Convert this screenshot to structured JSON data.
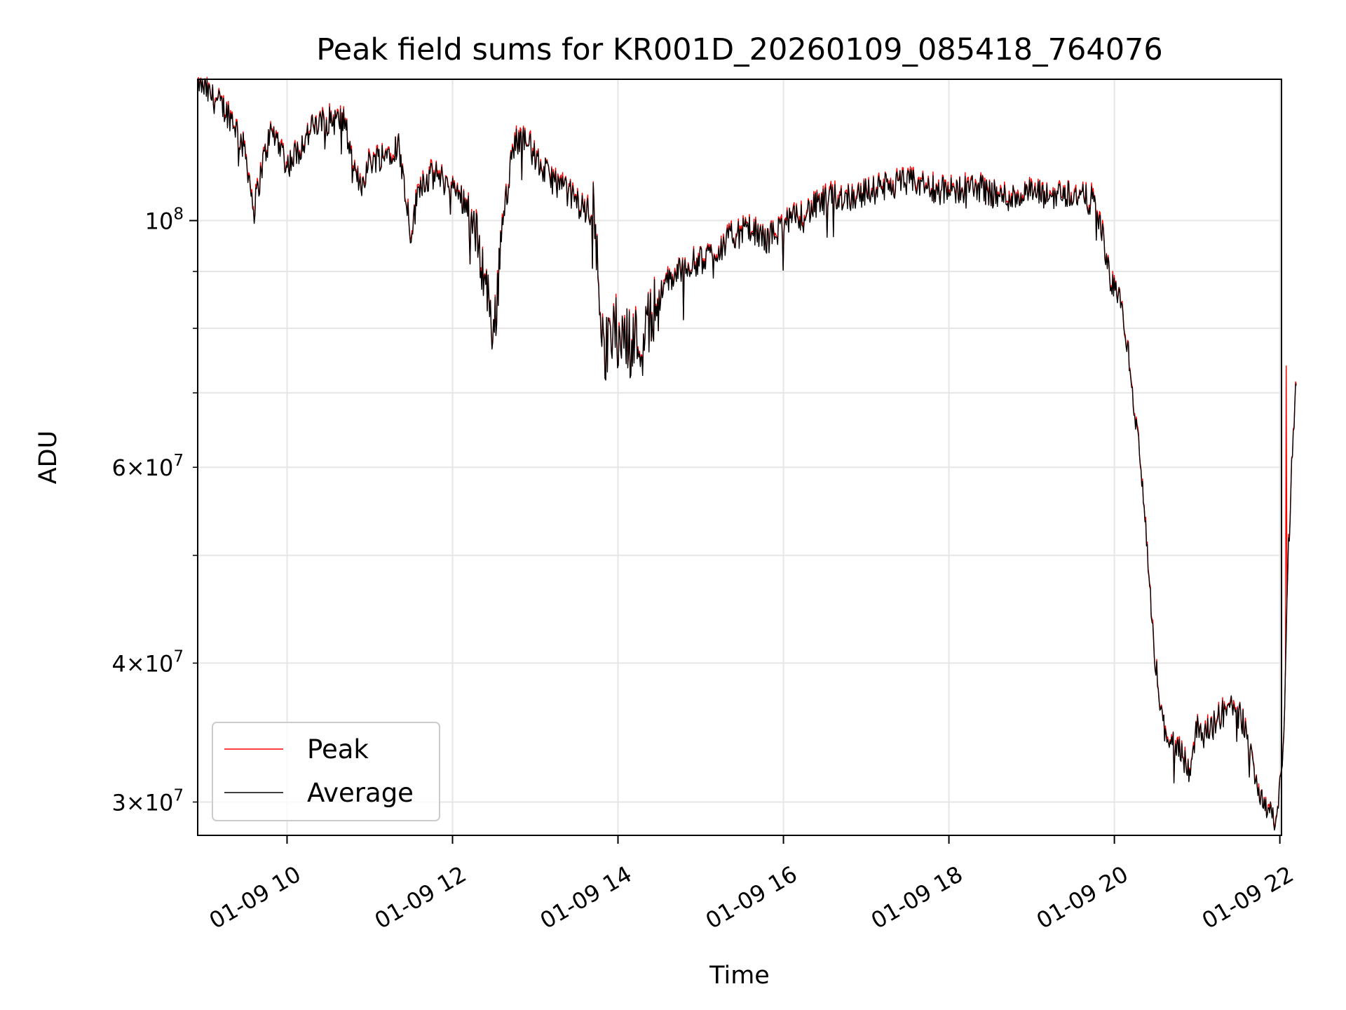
{
  "chart_data": {
    "type": "line",
    "title": "Peak field sums for KR001D_20260109_085418_764076",
    "xlabel": "Time",
    "ylabel": "ADU",
    "yscale": "log",
    "ylim": [
      28000000,
      134000000
    ],
    "xlim_hours": [
      8.92,
      22.02
    ],
    "grid": true,
    "legend_position": "lower-left",
    "colors": {
      "peak": "#ff0000",
      "average": "#000000",
      "grid": "#e6e6e6",
      "axes": "#000000"
    },
    "x_ticks": [
      {
        "hour": 10,
        "label": "01-09 10"
      },
      {
        "hour": 12,
        "label": "01-09 12"
      },
      {
        "hour": 14,
        "label": "01-09 14"
      },
      {
        "hour": 16,
        "label": "01-09 16"
      },
      {
        "hour": 18,
        "label": "01-09 18"
      },
      {
        "hour": 20,
        "label": "01-09 20"
      },
      {
        "hour": 22,
        "label": "01-09 22"
      }
    ],
    "y_major_ticks": [
      {
        "value": 100000000,
        "base": "10",
        "exp": "8"
      }
    ],
    "y_minor_ticks": [
      {
        "value": 30000000,
        "mant": "3",
        "exp": "7"
      },
      {
        "value": 40000000,
        "mant": "4",
        "exp": "7"
      },
      {
        "value": 50000000,
        "mant": "",
        "exp": ""
      },
      {
        "value": 60000000,
        "mant": "6",
        "exp": "7"
      },
      {
        "value": 70000000,
        "mant": "",
        "exp": ""
      },
      {
        "value": 80000000,
        "mant": "",
        "exp": ""
      },
      {
        "value": 90000000,
        "mant": "",
        "exp": ""
      }
    ],
    "series_points": [
      [
        8.92,
        134000000
      ],
      [
        9.05,
        130000000
      ],
      [
        9.2,
        127000000
      ],
      [
        9.35,
        123000000
      ],
      [
        9.5,
        115000000
      ],
      [
        9.6,
        102000000
      ],
      [
        9.7,
        112000000
      ],
      [
        9.8,
        120000000
      ],
      [
        9.9,
        118000000
      ],
      [
        10.0,
        112000000
      ],
      [
        10.15,
        116000000
      ],
      [
        10.3,
        121000000
      ],
      [
        10.5,
        123000000
      ],
      [
        10.7,
        123000000
      ],
      [
        10.8,
        110000000
      ],
      [
        10.9,
        108000000
      ],
      [
        11.0,
        113000000
      ],
      [
        11.2,
        115000000
      ],
      [
        11.35,
        117000000
      ],
      [
        11.5,
        97000000
      ],
      [
        11.6,
        108000000
      ],
      [
        11.8,
        110000000
      ],
      [
        12.0,
        107000000
      ],
      [
        12.2,
        103000000
      ],
      [
        12.35,
        92000000
      ],
      [
        12.45,
        84000000
      ],
      [
        12.5,
        78000000
      ],
      [
        12.6,
        100000000
      ],
      [
        12.75,
        118000000
      ],
      [
        12.9,
        118000000
      ],
      [
        13.05,
        112000000
      ],
      [
        13.2,
        109000000
      ],
      [
        13.4,
        106000000
      ],
      [
        13.55,
        103000000
      ],
      [
        13.7,
        101000000
      ],
      [
        13.85,
        76000000
      ],
      [
        13.95,
        80000000
      ],
      [
        14.1,
        78000000
      ],
      [
        14.3,
        78000000
      ],
      [
        14.45,
        84000000
      ],
      [
        14.6,
        88000000
      ],
      [
        14.8,
        91000000
      ],
      [
        15.0,
        92000000
      ],
      [
        15.2,
        94000000
      ],
      [
        15.4,
        97000000
      ],
      [
        15.6,
        98000000
      ],
      [
        15.8,
        96000000
      ],
      [
        16.0,
        99000000
      ],
      [
        16.2,
        101000000
      ],
      [
        16.4,
        103000000
      ],
      [
        16.6,
        105000000
      ],
      [
        16.8,
        105000000
      ],
      [
        17.0,
        106000000
      ],
      [
        17.2,
        107000000
      ],
      [
        17.4,
        108000000
      ],
      [
        17.6,
        108000000
      ],
      [
        17.8,
        107000000
      ],
      [
        18.0,
        106000000
      ],
      [
        18.2,
        107000000
      ],
      [
        18.4,
        107000000
      ],
      [
        18.6,
        105000000
      ],
      [
        18.8,
        105000000
      ],
      [
        19.0,
        106000000
      ],
      [
        19.2,
        105000000
      ],
      [
        19.4,
        106000000
      ],
      [
        19.6,
        105000000
      ],
      [
        19.75,
        104000000
      ],
      [
        19.85,
        98000000
      ],
      [
        19.95,
        88000000
      ],
      [
        20.05,
        86000000
      ],
      [
        20.15,
        78000000
      ],
      [
        20.2,
        72000000
      ],
      [
        20.25,
        66000000
      ],
      [
        20.3,
        63000000
      ],
      [
        20.35,
        56000000
      ],
      [
        20.4,
        50000000
      ],
      [
        20.45,
        44000000
      ],
      [
        20.5,
        40000000
      ],
      [
        20.55,
        37000000
      ],
      [
        20.6,
        35000000
      ],
      [
        20.7,
        34000000
      ],
      [
        20.8,
        33500000
      ],
      [
        20.9,
        32000000
      ],
      [
        21.0,
        35000000
      ],
      [
        21.1,
        34500000
      ],
      [
        21.2,
        35500000
      ],
      [
        21.3,
        36000000
      ],
      [
        21.4,
        36500000
      ],
      [
        21.5,
        36000000
      ],
      [
        21.55,
        35500000
      ],
      [
        21.6,
        34000000
      ],
      [
        21.7,
        32000000
      ],
      [
        21.8,
        30000000
      ],
      [
        21.9,
        29500000
      ],
      [
        21.95,
        28500000
      ],
      [
        22.0,
        31000000
      ],
      [
        22.05,
        34000000
      ],
      [
        22.1,
        50000000
      ],
      [
        22.15,
        62000000
      ],
      [
        22.2,
        72000000
      ]
    ],
    "spikes": [
      {
        "hour": 22.08,
        "value": 74000000
      }
    ],
    "series": [
      {
        "key": "peak",
        "name": "Peak",
        "color": "#ff0000"
      },
      {
        "key": "average",
        "name": "Average",
        "color": "#000000"
      }
    ]
  }
}
